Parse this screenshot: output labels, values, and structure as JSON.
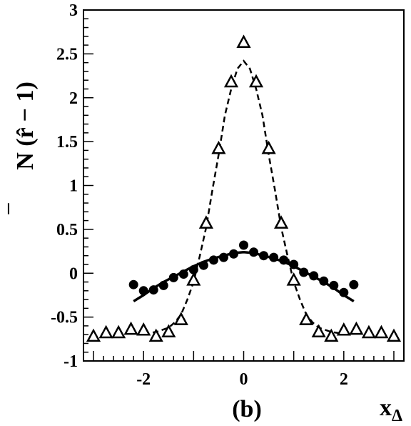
{
  "chart_data": {
    "type": "scatter",
    "panel_label": "(b)",
    "xlabel": "x",
    "xlabel_sub": "Δ",
    "ylabel": "N (r̂ − 1)",
    "ylabel_overbar": "–",
    "xlim": [
      -3.2,
      3.2
    ],
    "ylim": [
      -1,
      3
    ],
    "x_ticks": [
      -2,
      0,
      2
    ],
    "y_ticks": [
      {
        "value": 3,
        "label": "3"
      },
      {
        "value": 2.5,
        "label": "2.5"
      },
      {
        "value": 2,
        "label": "2"
      },
      {
        "value": 1.5,
        "label": "1.5"
      },
      {
        "value": 1,
        "label": "1"
      },
      {
        "value": 0.5,
        "label": "0.5"
      },
      {
        "value": 0,
        "label": "0"
      },
      {
        "value": -0.5,
        "label": "-0.5"
      },
      {
        "value": -1,
        "label": "-1"
      }
    ],
    "grid": false,
    "series": [
      {
        "marker": "triangle-open",
        "curve_style": "dashed",
        "points": [
          [
            -3.0,
            -0.72
          ],
          [
            -2.75,
            -0.68
          ],
          [
            -2.5,
            -0.68
          ],
          [
            -2.25,
            -0.64
          ],
          [
            -2.0,
            -0.65
          ],
          [
            -1.75,
            -0.72
          ],
          [
            -1.5,
            -0.67
          ],
          [
            -1.25,
            -0.53
          ],
          [
            -1.0,
            -0.08
          ],
          [
            -0.75,
            0.57
          ],
          [
            -0.5,
            1.42
          ],
          [
            -0.25,
            2.18
          ],
          [
            0.0,
            2.63
          ],
          [
            0.25,
            2.18
          ],
          [
            0.5,
            1.42
          ],
          [
            0.75,
            0.57
          ],
          [
            1.0,
            -0.08
          ],
          [
            1.25,
            -0.53
          ],
          [
            1.5,
            -0.67
          ],
          [
            1.75,
            -0.72
          ],
          [
            2.0,
            -0.65
          ],
          [
            2.25,
            -0.64
          ],
          [
            2.5,
            -0.68
          ],
          [
            2.75,
            -0.68
          ],
          [
            3.0,
            -0.72
          ]
        ],
        "curve": [
          [
            -2.0,
            -0.69
          ],
          [
            -1.75,
            -0.67
          ],
          [
            -1.5,
            -0.62
          ],
          [
            -1.375,
            -0.56
          ],
          [
            -1.25,
            -0.47
          ],
          [
            -1.125,
            -0.3
          ],
          [
            -1.0,
            -0.1
          ],
          [
            -0.875,
            0.2
          ],
          [
            -0.75,
            0.52
          ],
          [
            -0.625,
            0.95
          ],
          [
            -0.5,
            1.35
          ],
          [
            -0.375,
            1.8
          ],
          [
            -0.25,
            2.1
          ],
          [
            -0.125,
            2.33
          ],
          [
            0.0,
            2.42
          ],
          [
            0.125,
            2.33
          ],
          [
            0.25,
            2.1
          ],
          [
            0.375,
            1.8
          ],
          [
            0.5,
            1.35
          ],
          [
            0.625,
            0.95
          ],
          [
            0.75,
            0.52
          ],
          [
            0.875,
            0.2
          ],
          [
            1.0,
            -0.1
          ],
          [
            1.125,
            -0.3
          ],
          [
            1.25,
            -0.47
          ],
          [
            1.375,
            -0.56
          ],
          [
            1.5,
            -0.62
          ],
          [
            1.75,
            -0.67
          ],
          [
            2.0,
            -0.69
          ]
        ]
      },
      {
        "marker": "circle-filled",
        "curve_style": "solid",
        "points": [
          [
            -2.2,
            -0.13
          ],
          [
            -2.0,
            -0.2
          ],
          [
            -1.8,
            -0.19
          ],
          [
            -1.6,
            -0.14
          ],
          [
            -1.4,
            -0.05
          ],
          [
            -1.2,
            -0.01
          ],
          [
            -1.0,
            0.04
          ],
          [
            -0.8,
            0.09
          ],
          [
            -0.6,
            0.15
          ],
          [
            -0.4,
            0.18
          ],
          [
            -0.2,
            0.22
          ],
          [
            0.0,
            0.32
          ],
          [
            0.2,
            0.24
          ],
          [
            0.4,
            0.2
          ],
          [
            0.6,
            0.18
          ],
          [
            0.8,
            0.15
          ],
          [
            1.0,
            0.1
          ],
          [
            1.2,
            0.01
          ],
          [
            1.4,
            -0.03
          ],
          [
            1.6,
            -0.09
          ],
          [
            1.8,
            -0.14
          ],
          [
            2.0,
            -0.22
          ],
          [
            2.2,
            -0.13
          ]
        ],
        "curve": [
          [
            -2.2,
            -0.32
          ],
          [
            -2.0,
            -0.25
          ],
          [
            -1.8,
            -0.17
          ],
          [
            -1.6,
            -0.1
          ],
          [
            -1.4,
            -0.04
          ],
          [
            -1.2,
            0.02
          ],
          [
            -1.0,
            0.08
          ],
          [
            -0.8,
            0.13
          ],
          [
            -0.6,
            0.17
          ],
          [
            -0.4,
            0.2
          ],
          [
            -0.2,
            0.23
          ],
          [
            0.0,
            0.24
          ],
          [
            0.2,
            0.23
          ],
          [
            0.4,
            0.2
          ],
          [
            0.6,
            0.17
          ],
          [
            0.8,
            0.13
          ],
          [
            1.0,
            0.08
          ],
          [
            1.2,
            0.02
          ],
          [
            1.4,
            -0.04
          ],
          [
            1.6,
            -0.1
          ],
          [
            1.8,
            -0.17
          ],
          [
            2.0,
            -0.25
          ],
          [
            2.2,
            -0.32
          ]
        ]
      }
    ]
  }
}
